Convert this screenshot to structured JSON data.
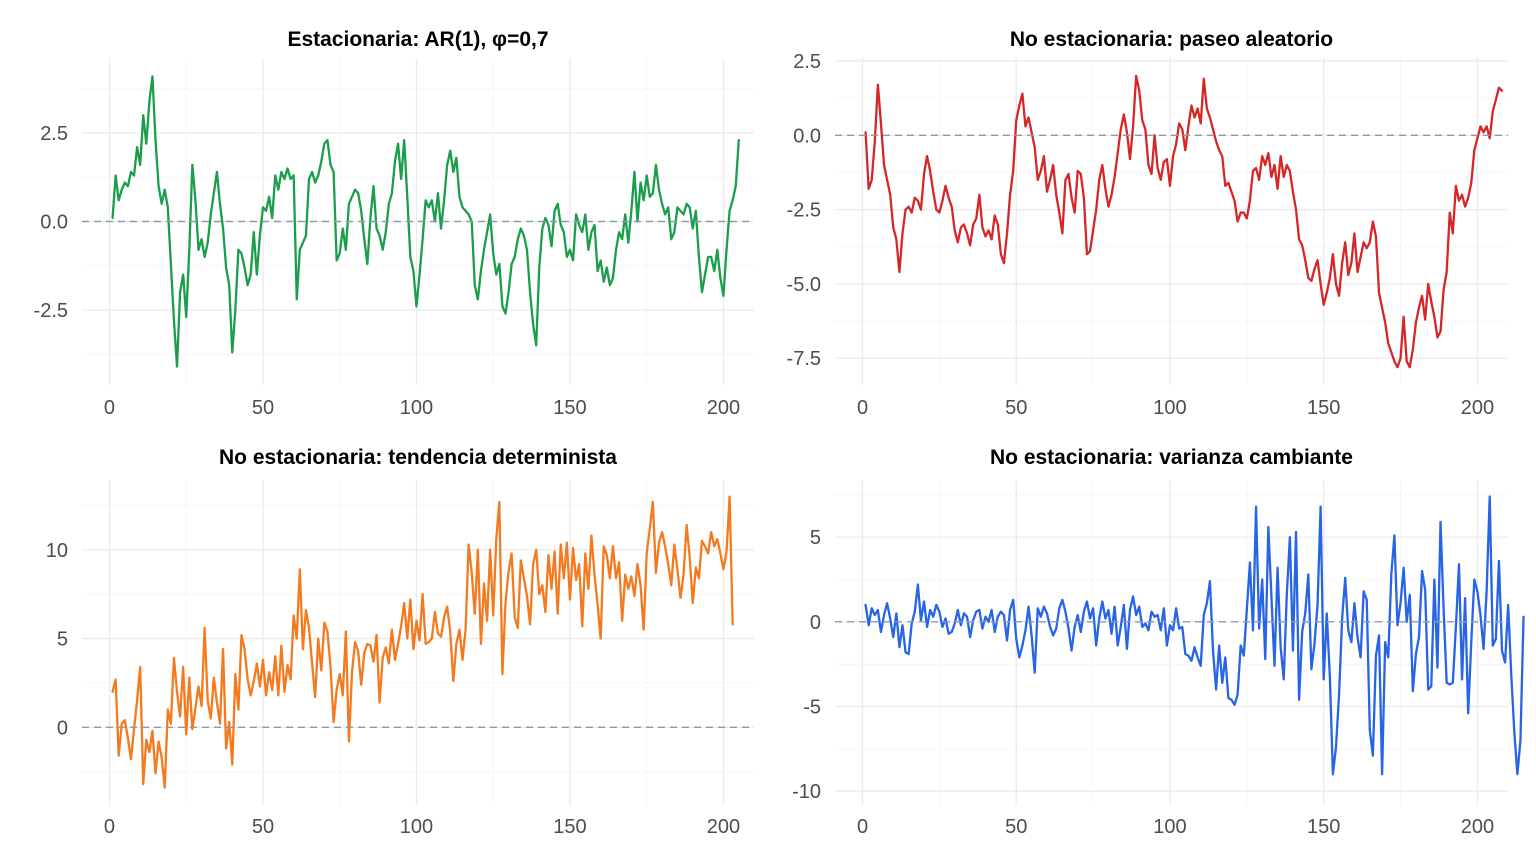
{
  "chart_data": [
    {
      "type": "line",
      "title": "Estacionaria: AR(1), φ=0,7",
      "xlabel": "",
      "ylabel": "",
      "xlim": [
        1,
        200
      ],
      "ylim": [
        -4.2,
        4.2
      ],
      "xticks": [
        0,
        50,
        100,
        150,
        200
      ],
      "xtick_labels": [
        "0",
        "50",
        "100",
        "150",
        "200"
      ],
      "yticks": [
        2.5,
        0.0,
        -2.5
      ],
      "ytick_labels": [
        "2.5",
        "0.0",
        "-2.5"
      ],
      "grid": true,
      "reference_line": 0,
      "color": "#1b9e4b",
      "series": [
        {
          "x_start": 1,
          "x_step": 1,
          "values": [
            0.1,
            1.3,
            0.6,
            0.9,
            1.1,
            1.0,
            1.4,
            1.3,
            2.1,
            1.6,
            3.0,
            2.2,
            3.4,
            4.1,
            2.3,
            1.0,
            0.5,
            0.9,
            0.4,
            -1.2,
            -2.8,
            -4.1,
            -2.0,
            -1.5,
            -2.7,
            -0.8,
            1.6,
            0.6,
            -0.8,
            -0.5,
            -1.0,
            -0.6,
            0.2,
            0.8,
            1.4,
            0.5,
            -0.2,
            -1.3,
            -1.8,
            -3.7,
            -2.5,
            -0.8,
            -0.9,
            -1.3,
            -1.8,
            -1.5,
            -0.3,
            -1.5,
            -0.4,
            0.4,
            0.3,
            0.7,
            0.1,
            1.3,
            0.9,
            1.4,
            1.2,
            1.5,
            1.2,
            1.3,
            -2.2,
            -0.8,
            -0.6,
            -0.4,
            1.2,
            1.4,
            1.1,
            1.3,
            1.7,
            2.2,
            2.3,
            1.6,
            1.4,
            -1.1,
            -0.9,
            -0.2,
            -0.8,
            0.5,
            0.7,
            0.9,
            0.8,
            0.3,
            -0.5,
            -1.2,
            0.1,
            1.0,
            -0.2,
            -0.4,
            -0.8,
            -0.3,
            0.5,
            0.8,
            1.7,
            2.2,
            1.2,
            2.3,
            0.7,
            -1.0,
            -1.4,
            -2.4,
            -1.5,
            -0.5,
            0.6,
            0.4,
            0.6,
            0.0,
            0.8,
            -0.2,
            0.6,
            1.6,
            2.0,
            1.4,
            1.8,
            0.7,
            0.4,
            0.3,
            0.2,
            0.0,
            -1.8,
            -2.2,
            -1.4,
            -0.8,
            -0.3,
            0.2,
            -0.9,
            -1.5,
            -1.2,
            -2.4,
            -2.6,
            -2.0,
            -1.2,
            -1.0,
            -0.5,
            -0.2,
            -0.4,
            -0.8,
            -2.0,
            -2.9,
            -3.5,
            -1.3,
            -0.2,
            0.1,
            -0.1,
            -0.7,
            0.3,
            0.5,
            -0.1,
            -0.3,
            -1.0,
            -0.8,
            -1.1,
            0.2,
            -0.1,
            -0.3,
            0.2,
            -0.8,
            -0.3,
            -0.1,
            -1.4,
            -1.1,
            -1.7,
            -1.3,
            -1.8,
            -1.6,
            -0.8,
            -0.3,
            -0.5,
            0.2,
            -0.6,
            0.3,
            1.4,
            0.0,
            1.1,
            0.6,
            1.3,
            0.7,
            0.8,
            1.6,
            0.9,
            0.5,
            0.2,
            0.4,
            -0.5,
            -0.3,
            0.4,
            0.3,
            0.2,
            0.5,
            0.4,
            -0.2,
            0.3,
            -1.0,
            -2.0,
            -1.5,
            -1.0,
            -1.0,
            -1.4,
            -0.8,
            -1.6,
            -2.1,
            -0.8,
            0.3,
            0.6,
            1.0,
            2.3
          ]
        }
      ]
    },
    {
      "type": "line",
      "title": "No estacionaria: paseo aleatorio",
      "xlabel": "",
      "ylabel": "",
      "xlim": [
        1,
        200
      ],
      "ylim": [
        -7.9,
        2.1
      ],
      "xticks": [
        0,
        50,
        100,
        150,
        200
      ],
      "xtick_labels": [
        "0",
        "50",
        "100",
        "150",
        "200"
      ],
      "yticks": [
        2.5,
        0.0,
        -2.5,
        -5.0,
        -7.5
      ],
      "ytick_labels": [
        "2.5",
        "0.0",
        "-2.5",
        "-5.0",
        "-7.5"
      ],
      "grid": true,
      "reference_line": 0,
      "color": "#d62728",
      "series": [
        {
          "x_start": 1,
          "x_step": 1,
          "values": [
            0.1,
            -1.8,
            -1.5,
            -0.2,
            1.7,
            0.4,
            -1.0,
            -1.5,
            -2.0,
            -3.1,
            -3.5,
            -4.6,
            -3.3,
            -2.5,
            -2.4,
            -2.6,
            -2.1,
            -2.2,
            -2.5,
            -1.3,
            -0.7,
            -1.2,
            -1.9,
            -2.5,
            -2.6,
            -2.2,
            -1.7,
            -2.1,
            -2.4,
            -3.2,
            -3.6,
            -3.1,
            -3.0,
            -3.3,
            -3.7,
            -3.0,
            -2.8,
            -2.0,
            -3.1,
            -3.4,
            -3.2,
            -3.5,
            -2.7,
            -3.0,
            -4.0,
            -4.3,
            -3.3,
            -2.0,
            -1.2,
            0.5,
            1.0,
            1.4,
            0.3,
            0.6,
            0.1,
            -0.4,
            -1.5,
            -1.2,
            -0.7,
            -1.9,
            -1.5,
            -1.0,
            -2.0,
            -2.6,
            -3.3,
            -1.5,
            -1.3,
            -2.1,
            -2.6,
            -1.2,
            -1.3,
            -2.1,
            -4.0,
            -3.9,
            -3.2,
            -2.5,
            -1.5,
            -1.0,
            -1.8,
            -2.4,
            -2.0,
            -1.4,
            -0.6,
            0.2,
            0.7,
            0.1,
            -0.8,
            0.3,
            2.0,
            1.5,
            0.5,
            0.2,
            -1.0,
            -1.3,
            0.0,
            -1.1,
            -1.5,
            -0.9,
            -0.8,
            -1.7,
            -0.7,
            -0.3,
            0.4,
            0.2,
            -0.5,
            0.3,
            1.0,
            0.6,
            0.9,
            0.4,
            1.9,
            0.9,
            0.6,
            0.2,
            -0.2,
            -0.5,
            -0.7,
            -1.7,
            -1.6,
            -1.9,
            -2.2,
            -2.9,
            -2.6,
            -2.6,
            -2.8,
            -2.2,
            -1.2,
            -1.1,
            -1.5,
            -0.7,
            -1.0,
            -0.6,
            -1.4,
            -1.0,
            -1.8,
            -0.7,
            -1.4,
            -1.0,
            -1.2,
            -1.9,
            -2.5,
            -3.5,
            -3.7,
            -4.2,
            -4.8,
            -4.9,
            -4.5,
            -4.2,
            -5.0,
            -5.7,
            -5.3,
            -4.8,
            -4.0,
            -5.0,
            -5.4,
            -4.3,
            -3.6,
            -4.7,
            -4.3,
            -3.3,
            -4.6,
            -4.1,
            -3.6,
            -3.8,
            -3.6,
            -2.9,
            -3.4,
            -5.3,
            -5.8,
            -6.3,
            -7.0,
            -7.3,
            -7.6,
            -7.8,
            -7.5,
            -6.1,
            -7.6,
            -7.8,
            -7.2,
            -6.3,
            -5.8,
            -5.4,
            -6.2,
            -5.0,
            -5.6,
            -6.1,
            -6.8,
            -6.6,
            -5.2,
            -4.6,
            -2.6,
            -3.3,
            -1.7,
            -2.2,
            -2.0,
            -2.4,
            -2.1,
            -1.6,
            -0.5,
            -0.1,
            0.3,
            0.1,
            0.3,
            -0.1,
            0.8,
            1.2,
            1.6,
            1.5
          ]
        }
      ]
    },
    {
      "type": "line",
      "title": "No estacionaria: tendencia determinista",
      "xlabel": "",
      "ylabel": "",
      "xlim": [
        1,
        200
      ],
      "ylim": [
        -3.6,
        13.1
      ],
      "xticks": [
        0,
        50,
        100,
        150,
        200
      ],
      "xtick_labels": [
        "0",
        "50",
        "100",
        "150",
        "200"
      ],
      "yticks": [
        10,
        5,
        0
      ],
      "ytick_labels": [
        "10",
        "5",
        "0"
      ],
      "grid": true,
      "reference_line": 0,
      "color": "#f47a1f",
      "series": [
        {
          "x_start": 1,
          "x_step": 1,
          "values": [
            2.0,
            2.7,
            -1.6,
            0.2,
            0.4,
            -0.6,
            -1.8,
            -0.1,
            1.5,
            3.4,
            -3.2,
            -0.7,
            -1.4,
            -0.2,
            -2.6,
            -0.8,
            -1.7,
            -3.4,
            1.0,
            0.2,
            3.9,
            2.0,
            0.6,
            3.4,
            -0.4,
            2.8,
            -0.1,
            1.1,
            2.3,
            1.2,
            5.6,
            1.5,
            0.5,
            2.8,
            1.4,
            0.2,
            4.4,
            -1.2,
            0.3,
            -2.1,
            3.0,
            1.0,
            5.2,
            4.4,
            2.7,
            1.8,
            2.6,
            3.6,
            2.3,
            3.8,
            1.8,
            3.1,
            2.1,
            4.0,
            1.8,
            4.6,
            2.0,
            3.5,
            2.7,
            6.3,
            5.0,
            8.9,
            4.4,
            6.6,
            5.6,
            3.6,
            1.7,
            5.0,
            3.2,
            5.9,
            5.4,
            3.4,
            0.3,
            2.1,
            3.0,
            1.8,
            5.4,
            -0.8,
            3.1,
            4.8,
            4.3,
            2.4,
            4.2,
            4.7,
            4.6,
            3.7,
            5.2,
            1.4,
            3.9,
            4.5,
            3.6,
            5.5,
            3.8,
            4.7,
            5.7,
            7.0,
            5.0,
            7.2,
            4.4,
            6.0,
            4.9,
            7.5,
            4.7,
            4.8,
            5.0,
            6.5,
            5.3,
            5.1,
            6.2,
            6.8,
            5.4,
            2.6,
            4.7,
            5.5,
            3.8,
            5.5,
            10.3,
            8.7,
            6.4,
            10.0,
            4.7,
            8.1,
            6.0,
            10.0,
            6.3,
            10.6,
            12.7,
            3.0,
            7.0,
            8.8,
            9.8,
            6.2,
            5.6,
            9.4,
            8.4,
            7.4,
            5.8,
            9.2,
            10.0,
            7.5,
            8.0,
            6.5,
            9.7,
            7.8,
            9.9,
            6.4,
            10.3,
            8.4,
            10.4,
            7.2,
            10.1,
            8.3,
            9.2,
            5.7,
            9.8,
            7.8,
            10.8,
            8.6,
            6.9,
            5.0,
            10.2,
            9.7,
            8.4,
            10.2,
            8.4,
            9.3,
            6.0,
            8.6,
            7.8,
            8.5,
            7.4,
            9.2,
            8.0,
            5.5,
            9.8,
            11.2,
            12.7,
            8.7,
            10.4,
            11.0,
            10.2,
            9.2,
            8.0,
            10.3,
            8.9,
            7.3,
            8.6,
            11.4,
            9.6,
            7.0,
            9.0,
            8.4,
            10.5,
            10.2,
            9.8,
            11.0,
            10.2,
            10.6,
            9.8,
            8.9,
            9.9,
            13.0,
            5.8
          ]
        }
      ]
    },
    {
      "type": "line",
      "title": "No estacionaria: varianza cambiante",
      "xlabel": "",
      "ylabel": "",
      "xlim": [
        1,
        200
      ],
      "ylim": [
        -10,
        7.5
      ],
      "xticks": [
        0,
        50,
        100,
        150,
        200
      ],
      "xtick_labels": [
        "0",
        "50",
        "100",
        "150",
        "200"
      ],
      "yticks": [
        5,
        0,
        -5,
        -10
      ],
      "ytick_labels": [
        "5",
        "0",
        "-5",
        "-10"
      ],
      "grid": true,
      "reference_line": 0,
      "color": "#2764e6",
      "series": [
        {
          "x_start": 1,
          "x_step": 1,
          "values": [
            1.0,
            -0.2,
            0.8,
            0.4,
            0.7,
            -0.6,
            0.4,
            1.1,
            0.2,
            -0.9,
            0.5,
            -1.5,
            -0.2,
            -1.8,
            -1.9,
            -0.1,
            0.6,
            2.2,
            0.1,
            1.2,
            -0.3,
            0.7,
            0.3,
            1.0,
            0.6,
            -0.3,
            0.2,
            -0.7,
            -0.6,
            -0.1,
            0.7,
            -0.2,
            0.5,
            0.3,
            -0.9,
            0.1,
            0.6,
            0.7,
            -0.4,
            0.3,
            0.0,
            0.7,
            -0.6,
            0.3,
            0.6,
            0.4,
            -1.1,
            0.7,
            1.3,
            -1.0,
            -2.1,
            -1.4,
            -0.5,
            0.9,
            -0.8,
            -3.0,
            0.8,
            0.3,
            0.9,
            0.5,
            -0.3,
            -0.8,
            -0.4,
            0.8,
            1.3,
            0.6,
            -0.4,
            -1.7,
            -0.3,
            0.4,
            -0.6,
            0.6,
            1.2,
            0.2,
            0.8,
            -1.4,
            0.2,
            1.2,
            0.2,
            0.7,
            -0.7,
            0.9,
            -1.4,
            -0.3,
            1.0,
            -1.6,
            0.7,
            1.5,
            0.4,
            0.9,
            -0.3,
            -0.1,
            -0.5,
            0.6,
            0.3,
            0.4,
            -0.5,
            0.8,
            -1.4,
            -0.2,
            -0.5,
            0.8,
            -0.4,
            -0.3,
            -1.9,
            -2.0,
            -2.3,
            -1.5,
            -2.1,
            -2.6,
            0.4,
            1.1,
            2.4,
            -1.7,
            -4.0,
            -1.4,
            -3.6,
            -2.1,
            -4.5,
            -4.6,
            -4.9,
            -4.3,
            -1.4,
            -2.0,
            0.7,
            3.5,
            -0.5,
            6.8,
            -0.4,
            2.5,
            -2.2,
            5.6,
            1.5,
            -2.6,
            3.2,
            -1.5,
            -3.4,
            1.6,
            5.0,
            -1.7,
            5.3,
            -4.6,
            -0.6,
            0.5,
            2.8,
            -2.8,
            -1.3,
            1.0,
            6.8,
            -3.4,
            0.5,
            -3.2,
            -9.0,
            -7.4,
            -4.3,
            0.2,
            2.6,
            -0.5,
            -1.2,
            1.1,
            -0.9,
            -2.1,
            1.8,
            1.3,
            -6.4,
            -7.9,
            -2.0,
            -0.8,
            -9.0,
            -1.2,
            -2.1,
            2.8,
            5.1,
            -0.2,
            1.1,
            3.2,
            0.0,
            1.6,
            -4.1,
            -1.9,
            -0.9,
            3.0,
            1.9,
            -4.0,
            -3.8,
            2.5,
            -2.7,
            5.9,
            0.8,
            -3.6,
            -3.7,
            -3.6,
            -0.3,
            3.4,
            -3.4,
            1.4,
            -5.4,
            -1.2,
            2.5,
            1.8,
            0.4,
            -1.6,
            1.8,
            7.4,
            -1.4,
            -1.0,
            3.6,
            -1.7,
            -2.4,
            1.0,
            -3.1,
            -6.5,
            -9.0,
            -7.0,
            0.3
          ]
        }
      ]
    }
  ]
}
